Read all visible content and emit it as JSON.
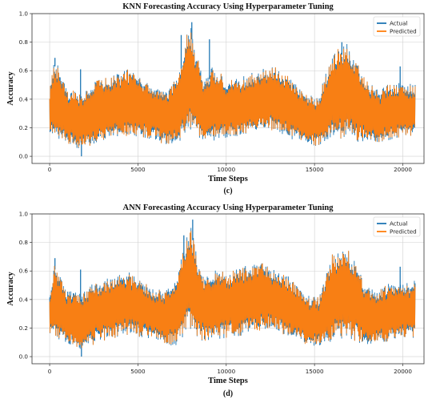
{
  "chart_data": [
    {
      "type": "line",
      "title": "KNN Forecasting Accuracy Using Hyperparameter Tuning",
      "xlabel": "Time Steps",
      "ylabel": "Accuracy",
      "caption": "(c)",
      "xlim": [
        -1000,
        21200
      ],
      "ylim": [
        -0.05,
        1.0
      ],
      "xticks": [
        0,
        5000,
        10000,
        15000,
        20000
      ],
      "yticks": [
        0.0,
        0.2,
        0.4,
        0.6,
        0.8,
        1.0
      ],
      "xtick_labels": [
        "0",
        "5000",
        "10000",
        "15000",
        "20000"
      ],
      "ytick_labels": [
        "0.0",
        "0.2",
        "0.4",
        "0.6",
        "0.8",
        "1.0"
      ],
      "grid": true,
      "legend_position": "top-right",
      "series": [
        {
          "name": "Actual",
          "color": "#1f77b4"
        },
        {
          "name": "Predicted",
          "color": "#ff7f0e"
        }
      ],
      "x_range": [
        0,
        20700
      ],
      "envelope": {
        "x": [
          0,
          300,
          1000,
          1700,
          2500,
          3500,
          4500,
          5500,
          6500,
          7000,
          7500,
          7800,
          8000,
          8300,
          8700,
          9300,
          10000,
          11000,
          12000,
          12800,
          13500,
          14500,
          15200,
          16000,
          16800,
          17200,
          17800,
          18500,
          19200,
          19800,
          20700
        ],
        "upper": [
          0.45,
          0.68,
          0.45,
          0.43,
          0.52,
          0.55,
          0.6,
          0.5,
          0.44,
          0.5,
          0.68,
          0.86,
          0.9,
          0.72,
          0.55,
          0.62,
          0.52,
          0.55,
          0.6,
          0.62,
          0.55,
          0.42,
          0.4,
          0.72,
          0.78,
          0.7,
          0.55,
          0.45,
          0.5,
          0.5,
          0.5
        ],
        "lower": [
          0.15,
          0.14,
          0.1,
          0.06,
          0.1,
          0.14,
          0.16,
          0.14,
          0.1,
          0.08,
          0.12,
          0.2,
          0.18,
          0.14,
          0.12,
          0.12,
          0.14,
          0.16,
          0.2,
          0.2,
          0.14,
          0.1,
          0.08,
          0.12,
          0.14,
          0.12,
          0.1,
          0.1,
          0.12,
          0.14,
          0.14
        ]
      },
      "peaks": [
        {
          "x": 300,
          "y": 0.69,
          "series": "Actual"
        },
        {
          "x": 1750,
          "y": 0.61,
          "series": "Actual"
        },
        {
          "x": 7450,
          "y": 0.85,
          "series": "Actual"
        },
        {
          "x": 8050,
          "y": 0.94,
          "series": "Actual"
        },
        {
          "x": 9050,
          "y": 0.82,
          "series": "Actual"
        },
        {
          "x": 16550,
          "y": 0.8,
          "series": "Actual"
        },
        {
          "x": 19850,
          "y": 0.63,
          "series": "Actual"
        },
        {
          "x": 1800,
          "y": 0.0,
          "series": "Actual"
        }
      ]
    },
    {
      "type": "line",
      "title": "ANN Forecasting Accuracy Using Hyperparameter Tuning",
      "xlabel": "Time Steps",
      "ylabel": "Accuracy",
      "caption": "(d)",
      "xlim": [
        -1000,
        21200
      ],
      "ylim": [
        -0.05,
        1.0
      ],
      "xticks": [
        0,
        5000,
        10000,
        15000,
        20000
      ],
      "yticks": [
        0.0,
        0.2,
        0.4,
        0.6,
        0.8,
        1.0
      ],
      "xtick_labels": [
        "0",
        "5000",
        "10000",
        "15000",
        "20000"
      ],
      "ytick_labels": [
        "0.0",
        "0.2",
        "0.4",
        "0.6",
        "0.8",
        "1.0"
      ],
      "grid": true,
      "legend_position": "top-right",
      "series": [
        {
          "name": "Actual",
          "color": "#1f77b4"
        },
        {
          "name": "Predicted",
          "color": "#ff7f0e"
        }
      ],
      "x_range": [
        0,
        20700
      ],
      "envelope": {
        "x": [
          0,
          300,
          1000,
          1700,
          2500,
          3500,
          4500,
          5500,
          6500,
          7000,
          7500,
          7800,
          8000,
          8300,
          8700,
          9300,
          10000,
          11000,
          12000,
          12800,
          13500,
          14500,
          15200,
          16000,
          16800,
          17200,
          17800,
          18500,
          19200,
          19800,
          20700
        ],
        "upper": [
          0.45,
          0.66,
          0.45,
          0.43,
          0.5,
          0.55,
          0.58,
          0.5,
          0.44,
          0.5,
          0.7,
          0.84,
          0.94,
          0.72,
          0.55,
          0.6,
          0.58,
          0.62,
          0.65,
          0.6,
          0.55,
          0.42,
          0.4,
          0.7,
          0.75,
          0.68,
          0.52,
          0.45,
          0.5,
          0.5,
          0.52
        ],
        "lower": [
          0.15,
          0.14,
          0.1,
          0.06,
          0.1,
          0.14,
          0.16,
          0.14,
          0.1,
          0.08,
          0.12,
          0.2,
          0.18,
          0.14,
          0.12,
          0.12,
          0.14,
          0.16,
          0.2,
          0.2,
          0.14,
          0.1,
          0.08,
          0.12,
          0.14,
          0.12,
          0.1,
          0.1,
          0.12,
          0.14,
          0.14
        ]
      },
      "peaks": [
        {
          "x": 300,
          "y": 0.69,
          "series": "Actual"
        },
        {
          "x": 1750,
          "y": 0.61,
          "series": "Actual"
        },
        {
          "x": 7600,
          "y": 0.85,
          "series": "Actual"
        },
        {
          "x": 8100,
          "y": 0.96,
          "series": "Actual"
        },
        {
          "x": 9600,
          "y": 0.57,
          "series": "Actual"
        },
        {
          "x": 19850,
          "y": 0.63,
          "series": "Actual"
        },
        {
          "x": 1800,
          "y": 0.0,
          "series": "Actual"
        }
      ]
    }
  ]
}
